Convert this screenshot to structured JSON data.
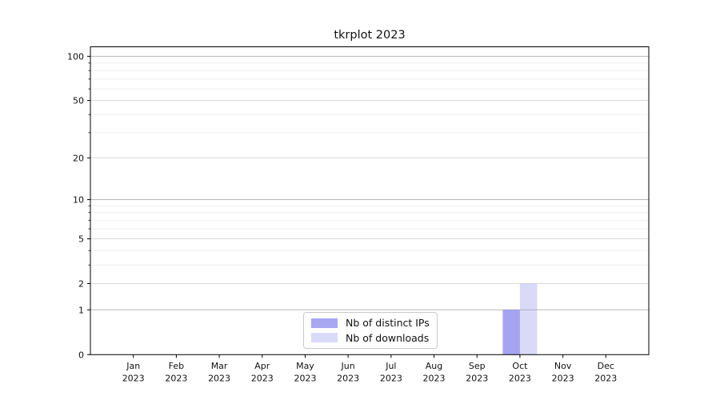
{
  "title": "tkrplot 2023",
  "chart_data": {
    "type": "bar",
    "title": "tkrplot 2023",
    "xlabel": "",
    "ylabel": "",
    "categories": [
      {
        "month": "Jan",
        "year": "2023"
      },
      {
        "month": "Feb",
        "year": "2023"
      },
      {
        "month": "Mar",
        "year": "2023"
      },
      {
        "month": "Apr",
        "year": "2023"
      },
      {
        "month": "May",
        "year": "2023"
      },
      {
        "month": "Jun",
        "year": "2023"
      },
      {
        "month": "Jul",
        "year": "2023"
      },
      {
        "month": "Aug",
        "year": "2023"
      },
      {
        "month": "Sep",
        "year": "2023"
      },
      {
        "month": "Oct",
        "year": "2023"
      },
      {
        "month": "Nov",
        "year": "2023"
      },
      {
        "month": "Dec",
        "year": "2023"
      }
    ],
    "series": [
      {
        "name": "Nb of distinct IPs",
        "color": "#a7a7f2",
        "bar_fill": "rgba(108,108,233,0.62)",
        "values": [
          0,
          0,
          0,
          0,
          0,
          0,
          0,
          0,
          0,
          1,
          0,
          0
        ]
      },
      {
        "name": "Nb of downloads",
        "color": "#d9d9f8",
        "bar_fill": "rgba(146,146,235,0.35)",
        "values": [
          0,
          0,
          0,
          0,
          0,
          0,
          0,
          0,
          0,
          2,
          0,
          0
        ]
      }
    ],
    "yscale": "log1p",
    "ylim": [
      0,
      116
    ],
    "yticks": [
      0,
      1,
      2,
      5,
      10,
      20,
      50,
      100
    ],
    "yticks_minor": [
      3,
      4,
      6,
      7,
      8,
      9,
      30,
      40,
      60,
      70,
      80,
      90
    ],
    "grid": "horizontal",
    "legend_position": "lower-center"
  },
  "colors": {
    "background": "#ffffff",
    "axis": "#000000",
    "text": "#111111",
    "grid_decade": "#b8b8b8",
    "grid_major": "#d8d8d8",
    "grid_minor": "#efefef",
    "legend_border": "#c9c9c9"
  }
}
